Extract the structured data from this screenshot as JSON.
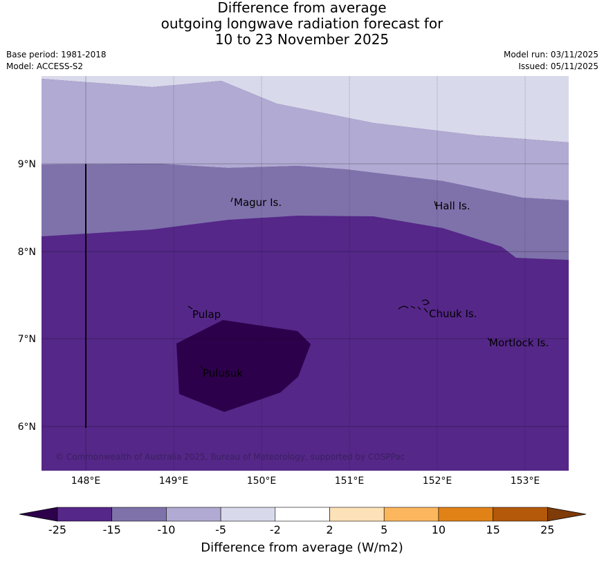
{
  "title": {
    "line1": "Difference from average",
    "line2": "outgoing longwave radiation forecast for",
    "line3": "10 to 23 November 2025"
  },
  "meta": {
    "base_period": "Base period: 1981-2018",
    "model": "Model: ACCESS-S2",
    "model_run": "Model run: 03/11/2025",
    "issued": "Issued: 05/11/2025"
  },
  "map": {
    "lon_range": [
      147.5,
      153.5
    ],
    "lat_range": [
      5.5,
      10.0
    ],
    "lon_ticks": [
      "148°E",
      "149°E",
      "150°E",
      "151°E",
      "152°E",
      "153°E"
    ],
    "lon_tick_values": [
      148,
      149,
      150,
      151,
      152,
      153
    ],
    "lat_ticks": [
      "9°N",
      "8°N",
      "7°N",
      "6°N"
    ],
    "lat_tick_values": [
      9,
      8,
      7,
      6
    ],
    "places": [
      {
        "name": "Magur Is.",
        "lon": 149.67,
        "lat": 8.55
      },
      {
        "name": "Hall Is.",
        "lon": 151.97,
        "lat": 8.52
      },
      {
        "name": "Pulap",
        "lon": 149.2,
        "lat": 7.27
      },
      {
        "name": "Chuuk Is.",
        "lon": 151.9,
        "lat": 7.3
      },
      {
        "name": "Mortlock Is.",
        "lon": 152.6,
        "lat": 6.97
      },
      {
        "name": "Pulusuk",
        "lon": 149.33,
        "lat": 6.6
      }
    ],
    "copyright": "© Commonwealth of Australia 2025, Bureau of Meteorology, supported by COSPPac"
  },
  "colorbar": {
    "label": "Difference from average (W/m2)",
    "ticks": [
      "-25",
      "-15",
      "-10",
      "-5",
      "-2",
      "2",
      "5",
      "10",
      "15",
      "25"
    ],
    "colors": [
      "#552788",
      "#7f72ab",
      "#b1aad2",
      "#d8d9ea",
      "#ffffff",
      "#fde1b8",
      "#fbb65e",
      "#e18217",
      "#b35909"
    ],
    "under_color": "#2d004b",
    "over_color": "#7f3b08"
  },
  "colors": {
    "c_below_m25": "#2d004b",
    "c_m25_m15": "#552788",
    "c_m15_m10": "#7f72ab",
    "c_m10_m5": "#b1aad2",
    "c_m5_m2": "#d8d9ea"
  }
}
